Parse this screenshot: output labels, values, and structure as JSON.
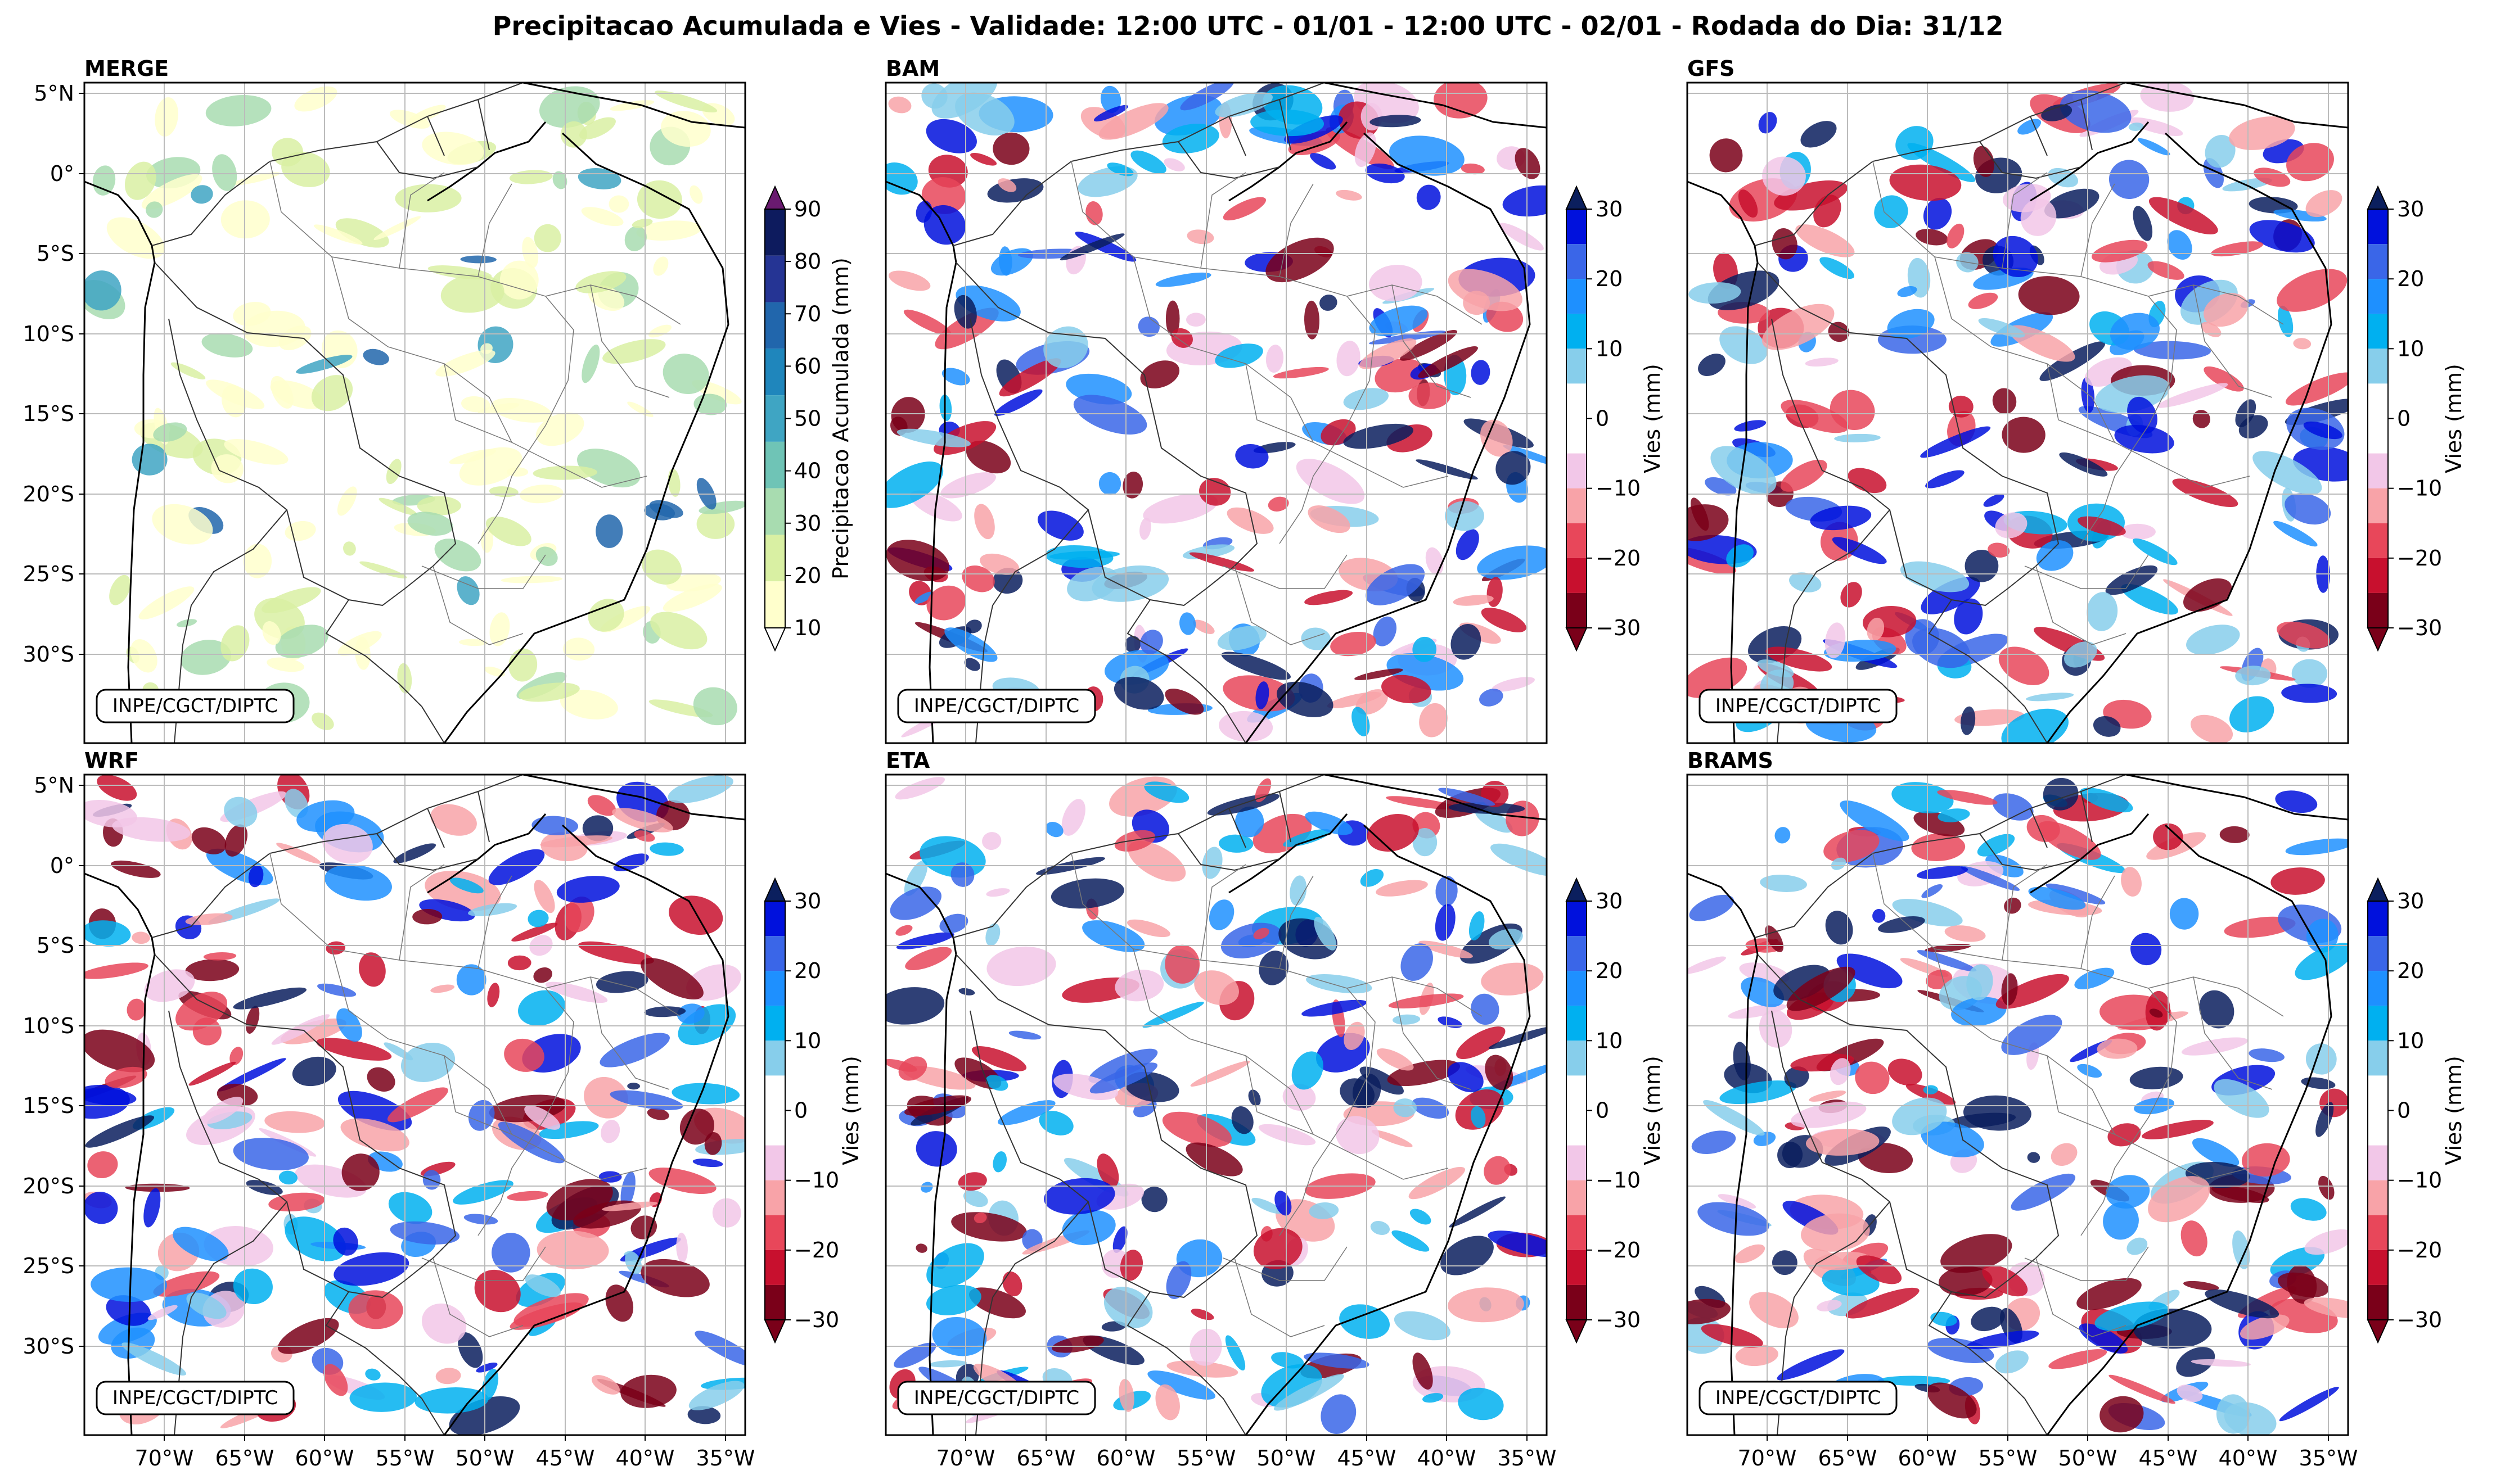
{
  "figure": {
    "title": "Precipitacao Acumulada e Vies - Validade: 12:00 UTC - 01/01 - 12:00 UTC - 02/01 - Rodada do Dia: 31/12"
  },
  "axes": {
    "lat_labels": [
      "5°N",
      "0°",
      "5°S",
      "10°S",
      "15°S",
      "20°S",
      "25°S",
      "30°S"
    ],
    "lon_labels": [
      "70°W",
      "65°W",
      "60°W",
      "55°W",
      "50°W",
      "45°W",
      "40°W",
      "35°W"
    ]
  },
  "credit": "INPE/CGCT/DIPTC",
  "colorbars": {
    "precip": {
      "label": "Precipitacao Acumulada (mm)",
      "ticks": [
        "90",
        "80",
        "70",
        "60",
        "50",
        "40",
        "30",
        "20",
        "10"
      ],
      "colors": [
        "#ffffcc",
        "#d9f0a3",
        "#a8dcb0",
        "#6fc4b6",
        "#3fa5c3",
        "#1f86bc",
        "#2166ac",
        "#253494",
        "#0d1b5e"
      ],
      "over_color": "#6a1a70",
      "under_color": "#ffffff"
    },
    "bias": {
      "label": "Vies (mm)",
      "ticks": [
        "30",
        "20",
        "10",
        "0",
        "−10",
        "−20",
        "−30"
      ],
      "colors": [
        "#7a0019",
        "#c8102e",
        "#e8475a",
        "#f8a3a8",
        "#f2c7e8",
        "#ffffff",
        "#ffffff",
        "#87ceeb",
        "#00b0f0",
        "#1e90ff",
        "#3a66e8",
        "#0011dd"
      ],
      "over_color": "#0b1f5e",
      "under_color": "#7a0019"
    }
  },
  "panels": [
    {
      "id": "merge",
      "label": "MERGE",
      "kind": "precip"
    },
    {
      "id": "bam",
      "label": "BAM",
      "kind": "bias"
    },
    {
      "id": "gfs",
      "label": "GFS",
      "kind": "bias"
    },
    {
      "id": "wrf",
      "label": "WRF",
      "kind": "bias"
    },
    {
      "id": "eta",
      "label": "ETA",
      "kind": "bias"
    },
    {
      "id": "brams",
      "label": "BRAMS",
      "kind": "bias"
    }
  ],
  "map_extent": {
    "lon_min": -75,
    "lon_max": -34,
    "lat_min": -35,
    "lat_max": 6
  }
}
